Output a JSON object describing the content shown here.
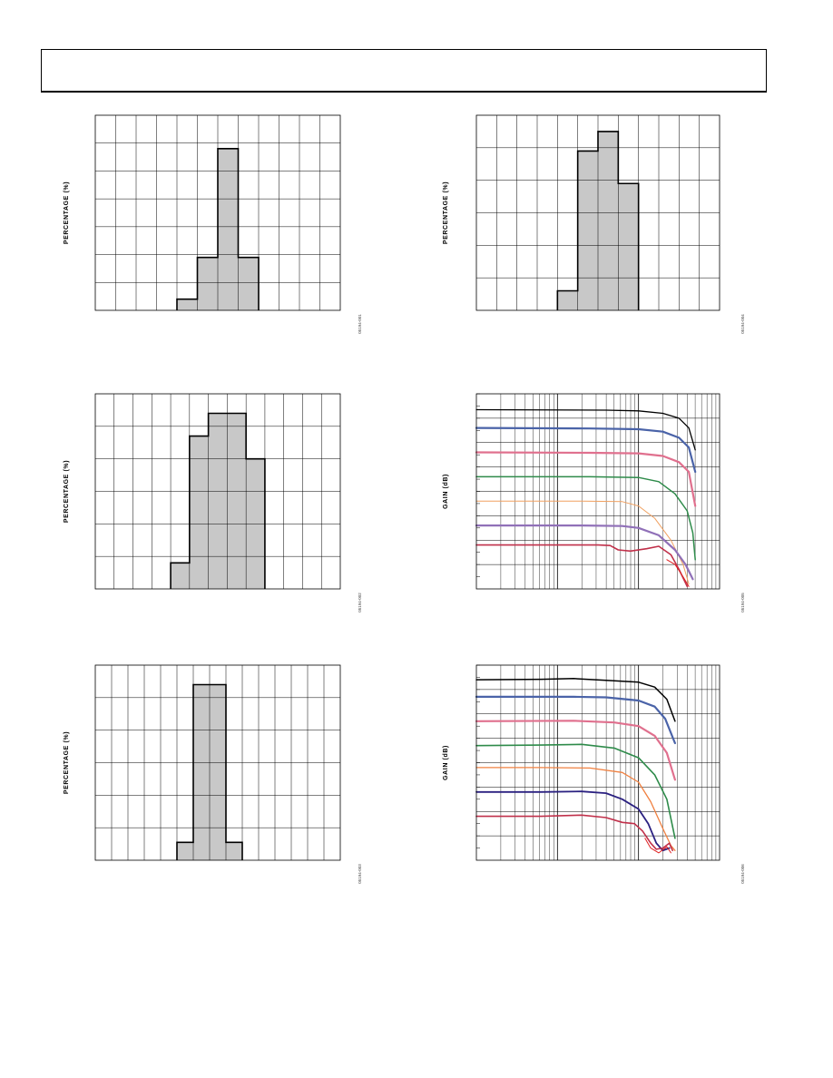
{
  "page": {
    "header_text": ""
  },
  "chart_data": [
    {
      "id": "hist-1",
      "type": "bar",
      "ylabel": "PERCENTAGE (%)",
      "figure_id": "05194-001",
      "colors": {
        "bar_fill": "#c8c8c8",
        "outline": "#000000",
        "grid": "#000000"
      },
      "bins": 12,
      "grid_rows": 7,
      "ylim": [
        0,
        7
      ],
      "values": [
        0,
        0,
        0,
        0,
        0.4,
        1.9,
        5.8,
        1.9,
        0,
        0,
        0,
        0
      ]
    },
    {
      "id": "hist-2",
      "type": "bar",
      "ylabel": "PERCENTAGE (%)",
      "figure_id": "05194-002",
      "colors": {
        "bar_fill": "#c8c8c8",
        "outline": "#000000",
        "grid": "#000000"
      },
      "bins": 13,
      "grid_rows": 6,
      "ylim": [
        0,
        6
      ],
      "values": [
        0,
        0,
        0,
        0,
        0.8,
        4.7,
        5.4,
        5.4,
        4.0,
        0,
        0,
        0,
        0
      ]
    },
    {
      "id": "hist-3",
      "type": "bar",
      "ylabel": "PERCENTAGE (%)",
      "figure_id": "05194-003",
      "colors": {
        "bar_fill": "#c8c8c8",
        "outline": "#000000",
        "grid": "#000000"
      },
      "bins": 15,
      "grid_rows": 6,
      "ylim": [
        0,
        6
      ],
      "values": [
        0,
        0,
        0,
        0,
        0,
        0.55,
        5.4,
        5.4,
        0.55,
        0,
        0,
        0,
        0,
        0,
        0
      ]
    },
    {
      "id": "hist-4",
      "type": "bar",
      "ylabel": "PERCENTAGE (%)",
      "figure_id": "05194-004",
      "colors": {
        "bar_fill": "#c8c8c8",
        "outline": "#000000",
        "grid": "#000000"
      },
      "bins": 12,
      "grid_rows": 6,
      "ylim": [
        0,
        6
      ],
      "values": [
        0,
        0,
        0,
        0,
        0.6,
        4.9,
        5.5,
        3.9,
        0,
        0,
        0,
        0
      ]
    },
    {
      "id": "gain-1",
      "type": "line",
      "scale_x": "log",
      "ylabel": "GAIN (dB)",
      "figure_id": "05194-005",
      "x_decades": 3,
      "grid_rows": 8,
      "ylim": [
        0,
        8
      ],
      "xlim": [
        0,
        3
      ],
      "series": [
        {
          "color": "#000000",
          "width": 1.3,
          "points": [
            [
              0,
              7.35
            ],
            [
              1.6,
              7.33
            ],
            [
              2.0,
              7.3
            ],
            [
              2.3,
              7.2
            ],
            [
              2.5,
              7.0
            ],
            [
              2.62,
              6.6
            ],
            [
              2.7,
              5.7
            ]
          ]
        },
        {
          "color": "#4a63a8",
          "width": 2.2,
          "points": [
            [
              0,
              6.6
            ],
            [
              1.4,
              6.58
            ],
            [
              2.0,
              6.55
            ],
            [
              2.3,
              6.45
            ],
            [
              2.5,
              6.2
            ],
            [
              2.62,
              5.8
            ],
            [
              2.7,
              4.8
            ]
          ]
        },
        {
          "color": "#e0708e",
          "width": 2.2,
          "points": [
            [
              0,
              5.6
            ],
            [
              1.4,
              5.58
            ],
            [
              2.0,
              5.56
            ],
            [
              2.3,
              5.45
            ],
            [
              2.5,
              5.2
            ],
            [
              2.62,
              4.8
            ],
            [
              2.7,
              3.4
            ]
          ]
        },
        {
          "color": "#2e8b4a",
          "width": 1.5,
          "points": [
            [
              0,
              4.6
            ],
            [
              1.4,
              4.6
            ],
            [
              2.0,
              4.57
            ],
            [
              2.25,
              4.4
            ],
            [
              2.45,
              3.9
            ],
            [
              2.6,
              3.2
            ],
            [
              2.67,
              2.3
            ],
            [
              2.7,
              1.2
            ]
          ]
        },
        {
          "color": "#f0a060",
          "width": 1.0,
          "points": [
            [
              0,
              3.6
            ],
            [
              1.3,
              3.6
            ],
            [
              1.8,
              3.58
            ],
            [
              2.0,
              3.4
            ],
            [
              2.2,
              2.9
            ],
            [
              2.4,
              2.0
            ],
            [
              2.55,
              1.0
            ],
            [
              2.62,
              0.2
            ]
          ]
        },
        {
          "color": "#9070b8",
          "width": 2.2,
          "points": [
            [
              0,
              2.6
            ],
            [
              1.3,
              2.6
            ],
            [
              1.8,
              2.58
            ],
            [
              2.0,
              2.5
            ],
            [
              2.25,
              2.2
            ],
            [
              2.45,
              1.6
            ],
            [
              2.58,
              1.0
            ],
            [
              2.67,
              0.4
            ]
          ]
        },
        {
          "color": "#c0304a",
          "width": 1.6,
          "points": [
            [
              0,
              1.8
            ],
            [
              1.5,
              1.8
            ],
            [
              1.65,
              1.78
            ],
            [
              1.75,
              1.6
            ],
            [
              1.9,
              1.55
            ],
            [
              2.1,
              1.65
            ],
            [
              2.25,
              1.75
            ],
            [
              2.4,
              1.4
            ],
            [
              2.5,
              0.8
            ],
            [
              2.6,
              0.1
            ]
          ]
        },
        {
          "color": "#e02020",
          "width": 1.0,
          "points": [
            [
              2.35,
              1.2
            ],
            [
              2.45,
              1.0
            ],
            [
              2.55,
              0.5
            ],
            [
              2.62,
              0.1
            ]
          ]
        }
      ]
    },
    {
      "id": "gain-2",
      "type": "line",
      "scale_x": "log",
      "ylabel": "GAIN (dB)",
      "figure_id": "05194-006",
      "x_decades": 3,
      "grid_rows": 8,
      "ylim": [
        0,
        8
      ],
      "xlim": [
        0,
        3
      ],
      "series": [
        {
          "color": "#000000",
          "width": 1.5,
          "points": [
            [
              0,
              7.4
            ],
            [
              0.8,
              7.42
            ],
            [
              1.2,
              7.45
            ],
            [
              1.6,
              7.38
            ],
            [
              2.0,
              7.3
            ],
            [
              2.2,
              7.1
            ],
            [
              2.35,
              6.6
            ],
            [
              2.45,
              5.7
            ]
          ]
        },
        {
          "color": "#4a63a8",
          "width": 2.2,
          "points": [
            [
              0,
              6.7
            ],
            [
              1.2,
              6.7
            ],
            [
              1.6,
              6.68
            ],
            [
              2.0,
              6.55
            ],
            [
              2.2,
              6.3
            ],
            [
              2.33,
              5.8
            ],
            [
              2.45,
              4.8
            ]
          ]
        },
        {
          "color": "#e0708e",
          "width": 2.2,
          "points": [
            [
              0,
              5.7
            ],
            [
              1.2,
              5.72
            ],
            [
              1.7,
              5.65
            ],
            [
              2.0,
              5.5
            ],
            [
              2.2,
              5.1
            ],
            [
              2.35,
              4.4
            ],
            [
              2.45,
              3.3
            ]
          ]
        },
        {
          "color": "#2e8b4a",
          "width": 1.6,
          "points": [
            [
              0,
              4.7
            ],
            [
              0.8,
              4.72
            ],
            [
              1.3,
              4.75
            ],
            [
              1.7,
              4.6
            ],
            [
              2.0,
              4.2
            ],
            [
              2.2,
              3.5
            ],
            [
              2.35,
              2.5
            ],
            [
              2.45,
              0.9
            ]
          ]
        },
        {
          "color": "#f08040",
          "width": 1.3,
          "points": [
            [
              0,
              3.8
            ],
            [
              0.8,
              3.8
            ],
            [
              1.4,
              3.78
            ],
            [
              1.8,
              3.6
            ],
            [
              2.0,
              3.2
            ],
            [
              2.15,
              2.4
            ],
            [
              2.3,
              1.3
            ],
            [
              2.4,
              0.6
            ],
            [
              2.45,
              0.4
            ]
          ]
        },
        {
          "color": "#2a2080",
          "width": 1.8,
          "points": [
            [
              0,
              2.8
            ],
            [
              0.8,
              2.8
            ],
            [
              1.3,
              2.82
            ],
            [
              1.6,
              2.75
            ],
            [
              1.8,
              2.5
            ],
            [
              2.0,
              2.1
            ],
            [
              2.12,
              1.5
            ],
            [
              2.22,
              0.7
            ],
            [
              2.3,
              0.4
            ],
            [
              2.38,
              0.5
            ]
          ]
        },
        {
          "color": "#c0304a",
          "width": 1.6,
          "points": [
            [
              0,
              1.8
            ],
            [
              0.8,
              1.8
            ],
            [
              1.3,
              1.85
            ],
            [
              1.6,
              1.75
            ],
            [
              1.8,
              1.55
            ],
            [
              1.95,
              1.5
            ],
            [
              2.05,
              1.2
            ],
            [
              2.15,
              0.7
            ],
            [
              2.22,
              0.45
            ],
            [
              2.3,
              0.5
            ],
            [
              2.38,
              0.7
            ],
            [
              2.42,
              0.4
            ]
          ]
        },
        {
          "color": "#e02020",
          "width": 1.0,
          "points": [
            [
              2.08,
              0.9
            ],
            [
              2.15,
              0.5
            ],
            [
              2.25,
              0.3
            ],
            [
              2.35,
              0.55
            ],
            [
              2.4,
              0.3
            ]
          ]
        }
      ]
    }
  ]
}
